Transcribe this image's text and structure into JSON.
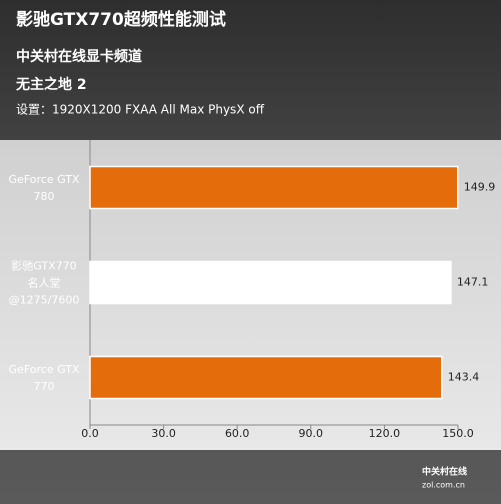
{
  "chart_data": {
    "type": "hbar",
    "title": "影驰GTX770超频性能测试",
    "subtitle": "中关村在线显卡频道",
    "game": "无主之地 2",
    "settings": "设置：1920X1200 FXAA All Max PhysX off",
    "categories": [
      "GeForce GTX\n780",
      "影驰GTX770\n名人堂\n@1275/7600",
      "GeForce GTX\n770"
    ],
    "values": [
      149.9,
      147.1,
      143.4
    ],
    "colors": [
      "#e46c0a",
      "#ffffff",
      "#e46c0a"
    ],
    "xlim": [
      0,
      150
    ],
    "xticks": [
      {
        "value": 0,
        "label": "0.0"
      },
      {
        "value": 30,
        "label": "30.0"
      },
      {
        "value": 60,
        "label": "60.0"
      },
      {
        "value": 90,
        "label": "90.0"
      },
      {
        "value": 120,
        "label": "120.0"
      },
      {
        "value": 150,
        "label": "150.0"
      }
    ],
    "watermark": [
      "中关村在线",
      "zol.com.cn"
    ]
  }
}
